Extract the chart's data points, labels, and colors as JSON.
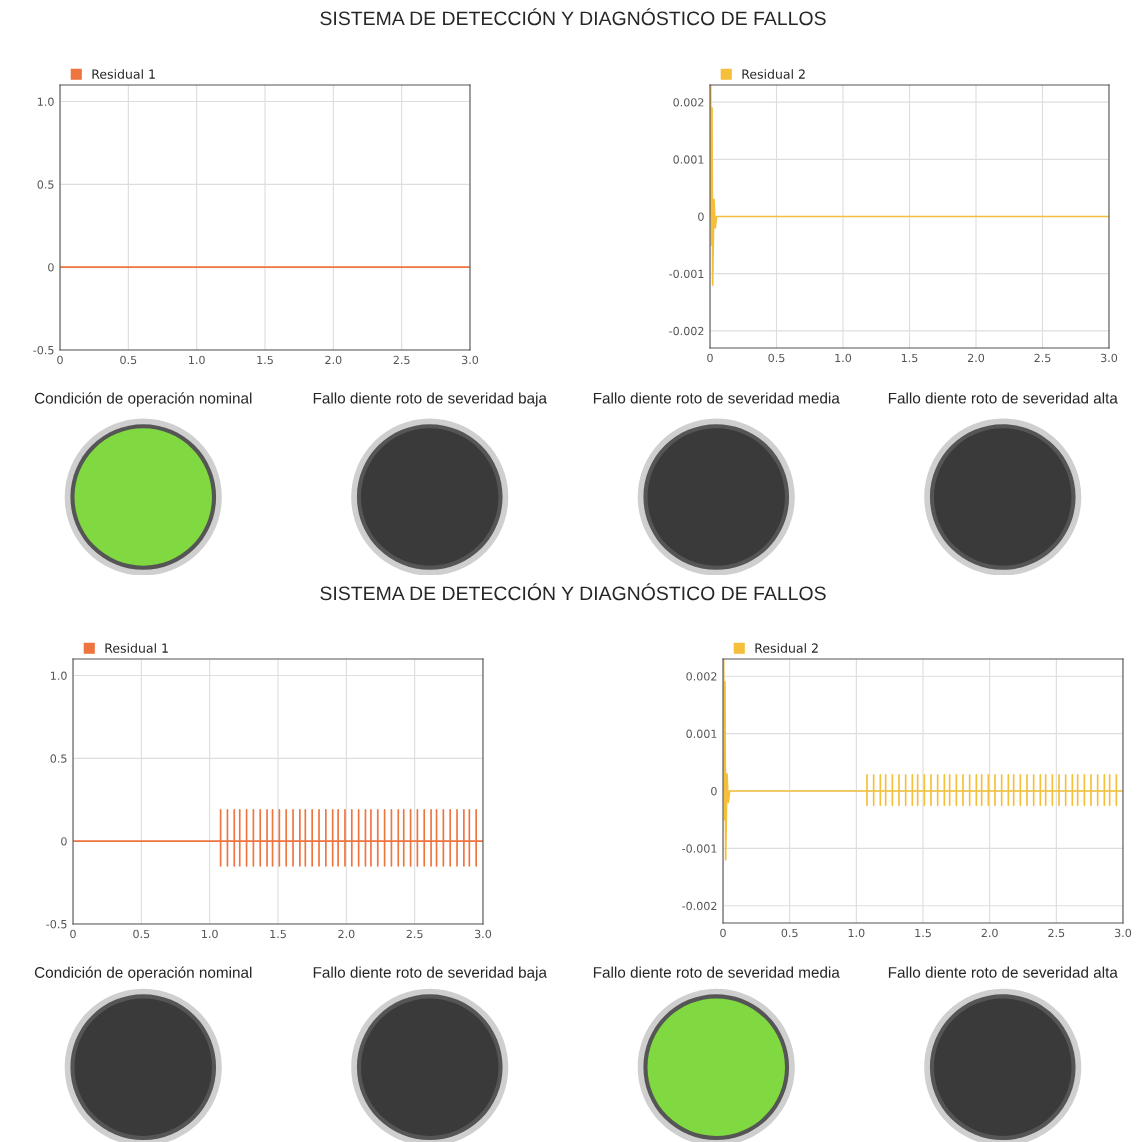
{
  "chart_data": [
    {
      "type": "other",
      "title": "SISTEMA DE DETECCIÓN Y DIAGNÓSTICO DE FALLOS"
    },
    {
      "type": "line",
      "legend": "top left",
      "grid": true,
      "xlim": [
        0,
        3.0
      ],
      "ylim": [
        -0.5,
        1.1
      ],
      "xticks": [
        0,
        0.5,
        {
          "value": 1,
          "label": "1.0"
        },
        1.5,
        {
          "value": 2,
          "label": "2.0"
        },
        2.5,
        {
          "value": 3,
          "label": "3.0"
        }
      ],
      "yticks": [
        -0.5,
        0,
        0.5,
        {
          "value": 1,
          "label": "1.0"
        }
      ],
      "series": [
        {
          "name": "Residual 1",
          "color": "#ee7440",
          "x": [
            0,
            3.0
          ],
          "values": [
            0,
            0
          ]
        }
      ]
    },
    {
      "type": "line",
      "legend": "top left",
      "grid": true,
      "xlim": [
        0,
        3.0
      ],
      "ylim": [
        -0.0023,
        0.0023
      ],
      "xticks": [
        0,
        0.5,
        {
          "value": 1,
          "label": "1.0"
        },
        1.5,
        {
          "value": 2,
          "label": "2.0"
        },
        2.5,
        {
          "value": 3,
          "label": "3.0"
        }
      ],
      "yticks": [
        -0.002,
        -0.001,
        0,
        0.001,
        0.002
      ],
      "series": [
        {
          "name": "Residual 2",
          "color": "#f5bf3c",
          "x": [
            0,
            0.005,
            0.01,
            0.015,
            0.02,
            0.03,
            0.04,
            0.05,
            3.0
          ],
          "values": [
            0,
            0.0023,
            -0.0005,
            0.0019,
            -0.0012,
            0.0003,
            -0.0002,
            0,
            0
          ]
        }
      ]
    },
    {
      "type": "other",
      "annotations": [
        "Condición de operación nominal",
        "Fallo diente roto de severidad baja",
        "Fallo diente roto de severidad media",
        "Fallo diente roto de severidad alta"
      ],
      "colors": [
        "#80d941",
        "#3a3a3a",
        "#3a3a3a",
        "#3a3a3a"
      ]
    },
    {
      "type": "other",
      "title": "SISTEMA DE DETECCIÓN Y DIAGNÓSTICO DE FALLOS"
    },
    {
      "type": "line",
      "legend": "top left",
      "grid": true,
      "xlim": [
        0,
        3.0
      ],
      "ylim": [
        -0.5,
        1.1
      ],
      "xticks": [
        0,
        0.5,
        {
          "value": 1,
          "label": "1.0"
        },
        1.5,
        {
          "value": 2,
          "label": "2.0"
        },
        2.5,
        {
          "value": 3,
          "label": "3.0"
        }
      ],
      "yticks": [
        -0.5,
        0,
        0.5,
        {
          "value": 1,
          "label": "1.0"
        }
      ],
      "series": [
        {
          "name": "Residual 1",
          "color": "#ee7440",
          "x": [
            0,
            1.08,
            1.08,
            1.08,
            1.08,
            1.13,
            1.13,
            1.13,
            1.13,
            1.18,
            1.18,
            1.18,
            1.18,
            1.22,
            1.22,
            1.22,
            1.22,
            1.27,
            1.27,
            1.27,
            1.27,
            1.32,
            1.32,
            1.32,
            1.32,
            1.37,
            1.37,
            1.37,
            1.37,
            1.42,
            1.42,
            1.42,
            1.42,
            1.46,
            1.46,
            1.46,
            1.46,
            1.51,
            1.51,
            1.51,
            1.51,
            1.56,
            1.56,
            1.56,
            1.56,
            1.61,
            1.61,
            1.61,
            1.61,
            1.66,
            1.66,
            1.66,
            1.66,
            1.7,
            1.7,
            1.7,
            1.7,
            1.75,
            1.75,
            1.75,
            1.75,
            1.8,
            1.8,
            1.8,
            1.8,
            1.85,
            1.85,
            1.85,
            1.85,
            1.9,
            1.9,
            1.9,
            1.9,
            1.94,
            1.94,
            1.94,
            1.94,
            1.99,
            1.99,
            1.99,
            1.99,
            2.04,
            2.04,
            2.04,
            2.04,
            2.09,
            2.09,
            2.09,
            2.09,
            2.14,
            2.14,
            2.14,
            2.14,
            2.18,
            2.18,
            2.18,
            2.18,
            2.23,
            2.23,
            2.23,
            2.23,
            2.28,
            2.28,
            2.28,
            2.28,
            2.33,
            2.33,
            2.33,
            2.33,
            2.38,
            2.38,
            2.38,
            2.38,
            2.42,
            2.42,
            2.42,
            2.42,
            2.47,
            2.47,
            2.47,
            2.47,
            2.52,
            2.52,
            2.52,
            2.52,
            2.57,
            2.57,
            2.57,
            2.57,
            2.62,
            2.62,
            2.62,
            2.62,
            2.66,
            2.66,
            2.66,
            2.66,
            2.71,
            2.71,
            2.71,
            2.71,
            2.76,
            2.76,
            2.76,
            2.76,
            2.81,
            2.81,
            2.81,
            2.81,
            2.86,
            2.86,
            2.86,
            2.86,
            2.9,
            2.9,
            2.9,
            2.9,
            2.95,
            2.95,
            2.95,
            2.95,
            3.0
          ],
          "values": [
            0,
            0,
            0.19,
            -0.15,
            0,
            0,
            0.19,
            -0.15,
            0,
            0,
            0.19,
            -0.15,
            0,
            0,
            0.19,
            -0.15,
            0,
            0,
            0.19,
            -0.15,
            0,
            0,
            0.19,
            -0.15,
            0,
            0,
            0.19,
            -0.15,
            0,
            0,
            0.19,
            -0.15,
            0,
            0,
            0.19,
            -0.15,
            0,
            0,
            0.19,
            -0.15,
            0,
            0,
            0.19,
            -0.15,
            0,
            0,
            0.19,
            -0.15,
            0,
            0,
            0.19,
            -0.15,
            0,
            0,
            0.19,
            -0.15,
            0,
            0,
            0.19,
            -0.15,
            0,
            0,
            0.19,
            -0.15,
            0,
            0,
            0.19,
            -0.15,
            0,
            0,
            0.19,
            -0.15,
            0,
            0,
            0.19,
            -0.15,
            0,
            0,
            0.19,
            -0.15,
            0,
            0,
            0.19,
            -0.15,
            0,
            0,
            0.19,
            -0.15,
            0,
            0,
            0.19,
            -0.15,
            0,
            0,
            0.19,
            -0.15,
            0,
            0,
            0.19,
            -0.15,
            0,
            0,
            0.19,
            -0.15,
            0,
            0,
            0.19,
            -0.15,
            0,
            0,
            0.19,
            -0.15,
            0,
            0,
            0.19,
            -0.15,
            0,
            0,
            0.19,
            -0.15,
            0,
            0,
            0.19,
            -0.15,
            0,
            0,
            0.19,
            -0.15,
            0,
            0,
            0.19,
            -0.15,
            0,
            0,
            0.19,
            -0.15,
            0,
            0,
            0.19,
            -0.15,
            0,
            0,
            0.19,
            -0.15,
            0,
            0,
            0.19,
            -0.15,
            0,
            0,
            0.19,
            -0.15,
            0,
            0,
            0.19,
            -0.15,
            0,
            0,
            0.19,
            -0.15,
            0,
            0
          ]
        }
      ]
    },
    {
      "type": "line",
      "legend": "top left",
      "grid": true,
      "xlim": [
        0,
        3.0
      ],
      "ylim": [
        -0.0023,
        0.0023
      ],
      "xticks": [
        0,
        0.5,
        {
          "value": 1,
          "label": "1.0"
        },
        1.5,
        {
          "value": 2,
          "label": "2.0"
        },
        2.5,
        {
          "value": 3,
          "label": "3.0"
        }
      ],
      "yticks": [
        -0.002,
        -0.001,
        0,
        0.001,
        0.002
      ],
      "series": [
        {
          "name": "Residual 2",
          "color": "#f5bf3c",
          "x": [
            0,
            0.005,
            0.01,
            0.015,
            0.02,
            0.03,
            0.04,
            0.05,
            1.08,
            1.08,
            1.08,
            1.08,
            1.13,
            1.13,
            1.13,
            1.13,
            1.18,
            1.18,
            1.18,
            1.18,
            1.22,
            1.22,
            1.22,
            1.22,
            1.27,
            1.27,
            1.27,
            1.27,
            1.32,
            1.32,
            1.32,
            1.32,
            1.37,
            1.37,
            1.37,
            1.37,
            1.42,
            1.42,
            1.42,
            1.42,
            1.46,
            1.46,
            1.46,
            1.46,
            1.51,
            1.51,
            1.51,
            1.51,
            1.56,
            1.56,
            1.56,
            1.56,
            1.61,
            1.61,
            1.61,
            1.61,
            1.66,
            1.66,
            1.66,
            1.66,
            1.7,
            1.7,
            1.7,
            1.7,
            1.75,
            1.75,
            1.75,
            1.75,
            1.8,
            1.8,
            1.8,
            1.8,
            1.85,
            1.85,
            1.85,
            1.85,
            1.9,
            1.9,
            1.9,
            1.9,
            1.94,
            1.94,
            1.94,
            1.94,
            1.99,
            1.99,
            1.99,
            1.99,
            2.04,
            2.04,
            2.04,
            2.04,
            2.09,
            2.09,
            2.09,
            2.09,
            2.14,
            2.14,
            2.14,
            2.14,
            2.18,
            2.18,
            2.18,
            2.18,
            2.23,
            2.23,
            2.23,
            2.23,
            2.28,
            2.28,
            2.28,
            2.28,
            2.33,
            2.33,
            2.33,
            2.33,
            2.38,
            2.38,
            2.38,
            2.38,
            2.42,
            2.42,
            2.42,
            2.42,
            2.47,
            2.47,
            2.47,
            2.47,
            2.52,
            2.52,
            2.52,
            2.52,
            2.57,
            2.57,
            2.57,
            2.57,
            2.62,
            2.62,
            2.62,
            2.62,
            2.66,
            2.66,
            2.66,
            2.66,
            2.71,
            2.71,
            2.71,
            2.71,
            2.76,
            2.76,
            2.76,
            2.76,
            2.81,
            2.81,
            2.81,
            2.81,
            2.86,
            2.86,
            2.86,
            2.86,
            2.9,
            2.9,
            2.9,
            2.9,
            2.95,
            2.95,
            2.95,
            2.95,
            3.0
          ],
          "values": [
            0,
            0.0023,
            -0.0005,
            0.0019,
            -0.0012,
            0.0003,
            -0.0002,
            0,
            0,
            0.00028,
            -0.00025,
            0,
            0,
            0.00028,
            -0.00025,
            0,
            0,
            0.00028,
            -0.00025,
            0,
            0,
            0.00028,
            -0.00025,
            0,
            0,
            0.00028,
            -0.00025,
            0,
            0,
            0.00028,
            -0.00025,
            0,
            0,
            0.00028,
            -0.00025,
            0,
            0,
            0.00028,
            -0.00025,
            0,
            0,
            0.00028,
            -0.00025,
            0,
            0,
            0.00028,
            -0.00025,
            0,
            0,
            0.00028,
            -0.00025,
            0,
            0,
            0.00028,
            -0.00025,
            0,
            0,
            0.00028,
            -0.00025,
            0,
            0,
            0.00028,
            -0.00025,
            0,
            0,
            0.00028,
            -0.00025,
            0,
            0,
            0.00028,
            -0.00025,
            0,
            0,
            0.00028,
            -0.00025,
            0,
            0,
            0.00028,
            -0.00025,
            0,
            0,
            0.00028,
            -0.00025,
            0,
            0,
            0.00028,
            -0.00025,
            0,
            0,
            0.00028,
            -0.00025,
            0,
            0,
            0.00028,
            -0.00025,
            0,
            0,
            0.00028,
            -0.00025,
            0,
            0,
            0.00028,
            -0.00025,
            0,
            0,
            0.00028,
            -0.00025,
            0,
            0,
            0.00028,
            -0.00025,
            0,
            0,
            0.00028,
            -0.00025,
            0,
            0,
            0.00028,
            -0.00025,
            0,
            0,
            0.00028,
            -0.00025,
            0,
            0,
            0.00028,
            -0.00025,
            0,
            0,
            0.00028,
            -0.00025,
            0,
            0,
            0.00028,
            -0.00025,
            0,
            0,
            0.00028,
            -0.00025,
            0,
            0,
            0.00028,
            -0.00025,
            0,
            0,
            0.00028,
            -0.00025,
            0,
            0,
            0.00028,
            -0.00025,
            0,
            0,
            0.00028,
            -0.00025,
            0,
            0,
            0.00028,
            -0.00025,
            0,
            0,
            0.00028,
            -0.00025,
            0,
            0,
            0.00028,
            -0.00025,
            0,
            0
          ]
        }
      ]
    },
    {
      "type": "other",
      "annotations": [
        "Condición de operación nominal",
        "Fallo diente roto de severidad baja",
        "Fallo diente roto de severidad media",
        "Fallo diente roto de severidad alta"
      ],
      "colors": [
        "#3a3a3a",
        "#3a3a3a",
        "#80d941",
        "#3a3a3a"
      ]
    }
  ]
}
